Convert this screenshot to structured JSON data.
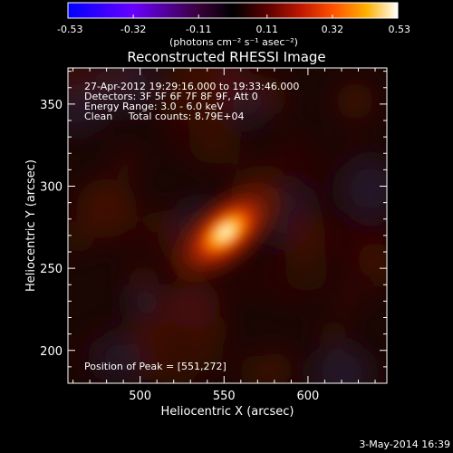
{
  "colorbar": {
    "tick_labels": [
      "-0.53",
      "-0.32",
      "-0.11",
      "0.11",
      "0.32",
      "0.53"
    ],
    "tick_values": [
      -0.53,
      -0.32,
      -0.11,
      0.11,
      0.32,
      0.53
    ],
    "range": [
      -0.53,
      0.53
    ],
    "units_label": "(photons cm⁻² s⁻¹ asec⁻²)",
    "stops": [
      {
        "value": -0.53,
        "color": "#0000ff"
      },
      {
        "value": -0.32,
        "color": "#6a00ff"
      },
      {
        "value": -0.11,
        "color": "#3a003a"
      },
      {
        "value": 0.0,
        "color": "#000000"
      },
      {
        "value": 0.11,
        "color": "#5a0000"
      },
      {
        "value": 0.22,
        "color": "#c01800"
      },
      {
        "value": 0.32,
        "color": "#ff5000"
      },
      {
        "value": 0.43,
        "color": "#ffb000"
      },
      {
        "value": 0.53,
        "color": "#ffffff"
      }
    ]
  },
  "chart_data": {
    "type": "heatmap",
    "title": "Reconstructed RHESSI Image",
    "xlabel": "Heliocentric X (arcsec)",
    "ylabel": "Heliocentric Y (arcsec)",
    "xlim": [
      457,
      647
    ],
    "ylim": [
      180,
      372
    ],
    "xticks": [
      500,
      550,
      600
    ],
    "yticks": [
      200,
      250,
      300,
      350
    ],
    "xtick_labels": [
      "500",
      "550",
      "600"
    ],
    "ytick_labels": [
      "200",
      "250",
      "300",
      "350"
    ],
    "source": {
      "x": 551,
      "y": 272,
      "peak": 0.53,
      "sigma_major": 13,
      "sigma_minor": 7,
      "angle_deg": 40
    },
    "background_level": 0.03,
    "annotations": [
      "27-Apr-2012 19:29:16.000 to 19:33:46.000",
      "Detectors: 3F 5F 6F 7F 8F 9F, Att 0",
      "Energy Range: 3.0 - 6.0 keV",
      "Clean     Total counts: 8.79E+04"
    ],
    "peak_label": "Position of Peak = [551,272]"
  },
  "footer_date": "3-May-2014 16:39"
}
